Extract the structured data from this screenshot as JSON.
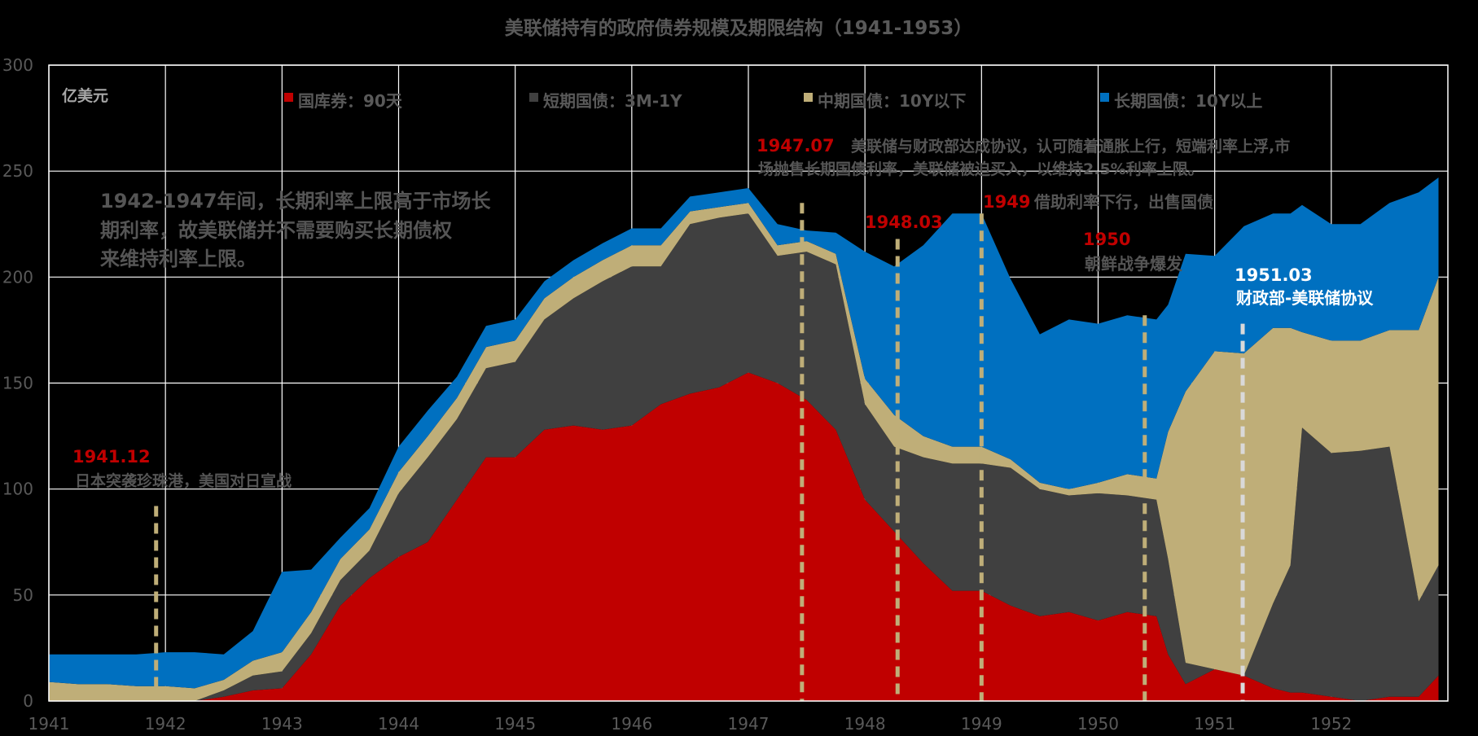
{
  "chart_data": {
    "type": "area",
    "stacked": true,
    "title": "美联储持有的政府债券规模及期限结构（1941-1953）",
    "unit_label": "亿美元",
    "xlim": [
      1941,
      1953
    ],
    "ylim": [
      0,
      300
    ],
    "x_ticks": [
      "1941",
      "1942",
      "1943",
      "1944",
      "1945",
      "1946",
      "1947",
      "1948",
      "1949",
      "1950",
      "1951",
      "1952"
    ],
    "y_ticks": [
      "0",
      "50",
      "100",
      "150",
      "200",
      "250",
      "300"
    ],
    "grid": true,
    "legend_position": "top",
    "x": [
      1941.0,
      1941.25,
      1941.5,
      1941.75,
      1942.0,
      1942.25,
      1942.5,
      1942.75,
      1943.0,
      1943.25,
      1943.5,
      1943.75,
      1944.0,
      1944.25,
      1944.5,
      1944.75,
      1945.0,
      1945.25,
      1945.5,
      1945.75,
      1946.0,
      1946.25,
      1946.5,
      1946.75,
      1947.0,
      1947.25,
      1947.5,
      1947.75,
      1948.0,
      1948.25,
      1948.5,
      1948.75,
      1949.0,
      1949.25,
      1949.5,
      1949.75,
      1950.0,
      1950.25,
      1950.5,
      1950.6,
      1950.75,
      1951.0,
      1951.25,
      1951.5,
      1951.65,
      1951.75,
      1952.0,
      1952.25,
      1952.5,
      1952.75,
      1952.92
    ],
    "series": [
      {
        "name": "国库券：90天",
        "color": "#c00000",
        "values": [
          0,
          0,
          0,
          0,
          0,
          0,
          2,
          5,
          6,
          22,
          45,
          58,
          68,
          75,
          95,
          115,
          115,
          128,
          130,
          128,
          130,
          140,
          145,
          148,
          155,
          150,
          142,
          128,
          95,
          80,
          65,
          52,
          52,
          45,
          40,
          42,
          38,
          42,
          40,
          22,
          8,
          15,
          12,
          6,
          4,
          4,
          2,
          0,
          2,
          2,
          12
        ]
      },
      {
        "name": "短期国债：3M-1Y",
        "color": "#404040",
        "values": [
          0,
          0,
          0,
          0,
          0,
          0,
          3,
          7,
          8,
          10,
          12,
          13,
          30,
          40,
          38,
          42,
          45,
          52,
          60,
          70,
          75,
          65,
          80,
          80,
          75,
          60,
          70,
          78,
          45,
          40,
          50,
          60,
          60,
          65,
          60,
          55,
          60,
          55,
          55,
          45,
          10,
          0,
          0,
          40,
          60,
          125,
          115,
          118,
          118,
          45,
          52
        ]
      },
      {
        "name": "中期国债：10Y以下",
        "color": "#bfae78",
        "values": [
          9,
          8,
          8,
          7,
          7,
          6,
          5,
          7,
          9,
          10,
          10,
          10,
          10,
          10,
          10,
          10,
          10,
          10,
          10,
          10,
          10,
          10,
          6,
          5,
          5,
          5,
          5,
          5,
          12,
          15,
          10,
          8,
          8,
          4,
          3,
          3,
          5,
          10,
          10,
          60,
          128,
          150,
          152,
          130,
          112,
          45,
          53,
          52,
          55,
          128,
          136
        ]
      },
      {
        "name": "长期国债：10Y以上",
        "color": "#0070c0",
        "values": [
          13,
          14,
          14,
          15,
          16,
          17,
          12,
          14,
          38,
          20,
          10,
          10,
          12,
          12,
          10,
          10,
          10,
          8,
          8,
          8,
          8,
          8,
          7,
          7,
          7,
          10,
          5,
          10,
          60,
          70,
          90,
          110,
          110,
          85,
          70,
          80,
          75,
          75,
          75,
          60,
          65,
          45,
          60,
          54,
          54,
          60,
          55,
          55,
          60,
          65,
          47
        ]
      }
    ],
    "event_lines": [
      {
        "x": 1941.92,
        "color": "#bfae78"
      },
      {
        "x": 1947.46,
        "color": "#bfae78"
      },
      {
        "x": 1948.28,
        "color": "#bfae78"
      },
      {
        "x": 1949.0,
        "color": "#bfae78"
      },
      {
        "x": 1950.4,
        "color": "#bfae78"
      },
      {
        "x": 1951.24,
        "color": "#d9d9d9"
      }
    ]
  },
  "annotations": {
    "a1941_date": "1941.12",
    "a1941_text": "日本突袭珍珠港，美国对日宣战",
    "a1942_line1": "1942-1947年间，长期利率上限高于市场长",
    "a1942_line2": "期利率，故美联储并不需要购买长期债权",
    "a1942_line3": "来维持利率上限。",
    "a1947_date": "1947.07",
    "a1947_line1": "美联储与财政部达成协议，认可随着通胀上行，短端利率上浮,市",
    "a1947_line2": "场抛售长期国债利率，美联储被迫买入，以维持2.5%利率上限。",
    "a1948_date": "1948.03",
    "a1949_date": "1949",
    "a1949_text": "借助利率下行，出售国债",
    "a1950_date": "1950",
    "a1950_text": "朝鲜战争爆发",
    "a1951_date": "1951.03",
    "a1951_text": "财政部-美联储协议"
  },
  "colors": {
    "accent_red": "#c00000",
    "annotation_grey": "#555555",
    "grid": "#ffffff",
    "background": "#000000"
  }
}
